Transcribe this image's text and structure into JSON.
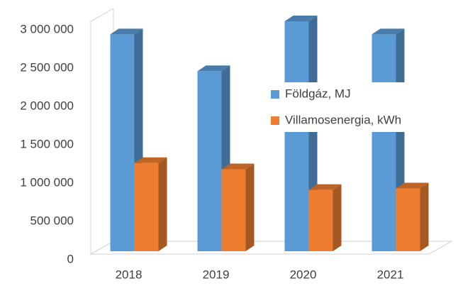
{
  "chart_data": {
    "type": "bar3d",
    "categories": [
      "2018",
      "2019",
      "2020",
      "2021"
    ],
    "series": [
      {
        "name": "Földgáz, MJ",
        "color": "#5b9bd5",
        "values": [
          2830000,
          2350000,
          3000000,
          2830000
        ]
      },
      {
        "name": "Villamosenergia, kWh",
        "color": "#ed7d31",
        "values": [
          1150000,
          1070000,
          800000,
          820000
        ]
      }
    ],
    "ylim": [
      0,
      3000000
    ],
    "yticks": [
      0,
      {
        "value": 500000,
        "label": "500 000"
      },
      {
        "value": 1000000,
        "label": "1 000 000"
      },
      {
        "value": 1500000,
        "label": "1 500 000"
      },
      {
        "value": 2000000,
        "label": "2 000 000"
      },
      {
        "value": 2500000,
        "label": "2 500 000"
      },
      {
        "value": 3000000,
        "label": "3 000 000"
      }
    ],
    "grid": false,
    "legend": "right"
  }
}
